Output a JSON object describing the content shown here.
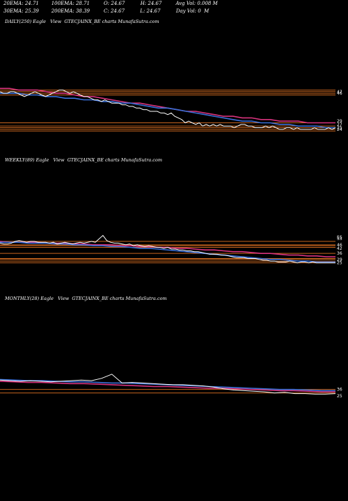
{
  "header": {
    "ema20": "20EMA: 24.71",
    "ema100": "100EMA: 28.71",
    "open": "O: 24.67",
    "high": "H: 24.67",
    "avg_vol": "Avg Vol: 0.008 M",
    "ema30": "30EMA: 25.39",
    "ema200": "200EMA: 38.39",
    "close": "C: 24.67",
    "low": "L: 24.67",
    "day_vol": "Day Vol: 0  M"
  },
  "colors": {
    "background": "#000000",
    "price": "#ffffff",
    "ema_short": "#3a6fd8",
    "ema_long": "#d9337e",
    "band": "#c8651e"
  },
  "chart_data": [
    {
      "type": "line",
      "title": "DAILY(250) Eagle   View  GTECJAINX_BE charts MunafaSutra.com",
      "price": [
        47,
        46,
        46,
        47,
        47,
        46,
        45,
        44,
        45,
        46,
        47,
        46,
        45,
        44,
        45,
        46,
        47,
        48,
        48,
        47,
        46,
        47,
        46,
        45,
        44,
        44,
        43,
        42,
        42,
        41,
        42,
        41,
        40,
        40,
        40,
        39,
        39,
        38,
        38,
        37,
        37,
        36,
        36,
        35,
        35,
        35,
        34,
        34,
        33,
        34,
        32,
        31,
        30,
        28,
        29,
        28,
        27,
        28,
        26,
        27,
        26,
        27,
        26,
        27,
        26,
        26,
        26,
        25,
        26,
        27,
        27,
        26,
        26,
        25,
        25,
        25,
        26,
        25,
        26,
        25,
        24,
        24,
        25,
        25,
        24,
        25,
        24,
        24,
        24,
        24,
        25,
        24,
        24,
        24,
        25,
        24,
        25
      ],
      "ema_short": [
        46,
        46,
        46,
        45,
        45,
        44,
        44,
        43,
        43,
        42,
        42,
        41,
        41,
        40,
        40,
        39,
        38,
        37,
        37,
        36,
        35,
        34,
        33,
        32,
        31,
        30,
        29,
        29,
        28,
        28,
        27,
        27,
        26,
        26,
        26,
        25,
        25
      ],
      "ema_long": [
        49,
        49,
        48,
        48,
        48,
        47,
        46,
        46,
        45,
        44,
        44,
        43,
        42,
        41,
        40,
        40,
        39,
        38,
        37,
        36,
        35,
        35,
        34,
        33,
        32,
        32,
        31,
        31,
        30,
        30,
        29,
        29,
        29,
        28,
        28,
        28,
        28
      ],
      "bands": [
        48,
        47,
        46,
        45,
        28,
        26,
        25,
        24,
        23
      ],
      "labels": [
        "47",
        "46",
        "29",
        "27",
        "25",
        "24"
      ],
      "ylim": [
        18,
        52
      ]
    },
    {
      "type": "line",
      "title": "WEEKLY(89) Eagle   View  GTECJAINX_BE charts MunafaSutra.com",
      "price": [
        48,
        47,
        47,
        48,
        50,
        51,
        50,
        49,
        50,
        50,
        49,
        49,
        49,
        48,
        49,
        47,
        48,
        49,
        48,
        47,
        48,
        49,
        48,
        49,
        50,
        49,
        53,
        57,
        51,
        49,
        48,
        48,
        47,
        46,
        47,
        45,
        46,
        45,
        44,
        45,
        44,
        43,
        43,
        42,
        43,
        41,
        41,
        40,
        40,
        39,
        39,
        38,
        38,
        37,
        36,
        35,
        35,
        35,
        34,
        34,
        33,
        32,
        31,
        31,
        31,
        30,
        30,
        30,
        29,
        28,
        28,
        27,
        27,
        26,
        26,
        26,
        27,
        26,
        25,
        26,
        26,
        25,
        26,
        25,
        25,
        25,
        25,
        25,
        25
      ],
      "ema_short": [
        49,
        49,
        49,
        48,
        48,
        48,
        47,
        47,
        46,
        46,
        45,
        45,
        44,
        44,
        43,
        42,
        42,
        41,
        40,
        39,
        38,
        37,
        36,
        35,
        34,
        33,
        32,
        31,
        30,
        29,
        29,
        28,
        27,
        27,
        26,
        26,
        26
      ],
      "ema_long": [
        50,
        49,
        49,
        49,
        49,
        48,
        48,
        48,
        47,
        47,
        46,
        46,
        46,
        45,
        45,
        44,
        44,
        43,
        43,
        42,
        42,
        41,
        40,
        40,
        39,
        38,
        38,
        37,
        36,
        36,
        35,
        34,
        34,
        33,
        33,
        32,
        32
      ],
      "bands": [
        50,
        46,
        45,
        43,
        36,
        30,
        29,
        27,
        25
      ],
      "labels": [
        "55",
        "53",
        "46",
        "42",
        "36",
        "29",
        "25"
      ],
      "ylim": [
        15,
        80
      ]
    },
    {
      "type": "line",
      "title": "MONTHLY(28) Eagle   View  GTECJAINX_BE charts MunafaSutra.com",
      "price": [
        52,
        51,
        50,
        51,
        50,
        49,
        50,
        51,
        52,
        51,
        55,
        62,
        47,
        48,
        47,
        46,
        45,
        44,
        44,
        43,
        42,
        40,
        37,
        35,
        34,
        33,
        32,
        30,
        31,
        29,
        29,
        28,
        28,
        29
      ],
      "ema_short": [
        53,
        52,
        51,
        51,
        50,
        49,
        49,
        48,
        47,
        47,
        46,
        45,
        44,
        43,
        42,
        41,
        40,
        39,
        38,
        37,
        36,
        36,
        35,
        34,
        34
      ],
      "ema_long": [
        50,
        49,
        48,
        48,
        47,
        46,
        46,
        45,
        44,
        43,
        42,
        41,
        41,
        40,
        39,
        38,
        38,
        37,
        36,
        35,
        34,
        34,
        33,
        32,
        32
      ],
      "bands": [
        36,
        30
      ],
      "labels": [
        "36",
        "25"
      ],
      "ylim": [
        0,
        95
      ]
    }
  ]
}
